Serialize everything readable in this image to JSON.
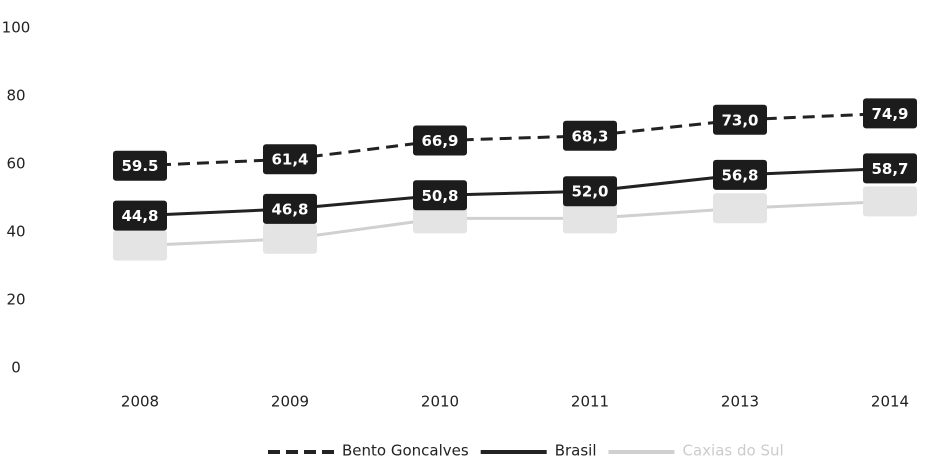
{
  "chart_data": {
    "type": "line",
    "categories": [
      "2008",
      "2009",
      "2010",
      "2011",
      "2013",
      "2014"
    ],
    "series": [
      {
        "name": "Bento Goncalves",
        "color": "#222222",
        "dash": true,
        "values": [
          59.5,
          61.4,
          66.9,
          68.3,
          73.0,
          74.9
        ],
        "value_labels": [
          "59.5",
          "61,4",
          "66,9",
          "68,3",
          "73,0",
          "74,9"
        ]
      },
      {
        "name": "Brasil",
        "color": "#222222",
        "dash": false,
        "values": [
          44.8,
          46.8,
          50.8,
          52.0,
          56.8,
          58.7
        ],
        "value_labels": [
          "44,8",
          "46,8",
          "50,8",
          "52,0",
          "56,8",
          "58,7"
        ]
      },
      {
        "name": "Caxias do Sul",
        "color": "#d0d0d0",
        "dash": false,
        "values": [
          36,
          38,
          44,
          44,
          47,
          49
        ]
      }
    ],
    "ylim": [
      0,
      100
    ],
    "yticks": [
      0,
      20,
      40,
      60,
      80,
      100
    ],
    "grid": false,
    "legend": "bottom"
  }
}
